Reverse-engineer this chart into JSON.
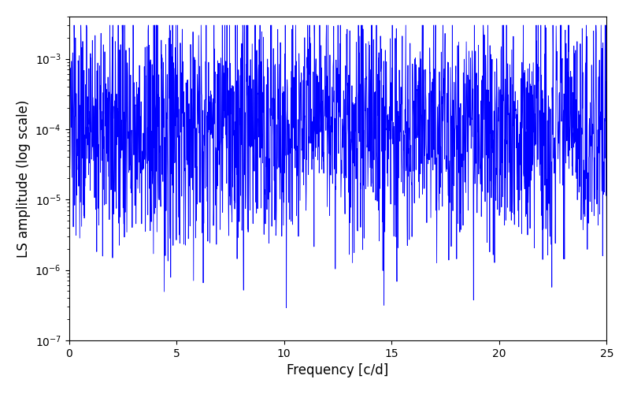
{
  "xlabel": "Frequency [c/d]",
  "ylabel": "LS amplitude (log scale)",
  "xlim": [
    0,
    25
  ],
  "ylim": [
    1e-07,
    0.004
  ],
  "line_color": "#0000ff",
  "line_width": 0.6,
  "yscale": "log",
  "figsize": [
    8.0,
    5.0
  ],
  "dpi": 100,
  "background_color": "#ffffff",
  "n_points": 2000,
  "seed": 137,
  "base_log": -4.0,
  "log_std": 0.85,
  "min_val": 1e-07,
  "max_val": 0.003,
  "xticks": [
    0,
    5,
    10,
    15,
    20,
    25
  ]
}
